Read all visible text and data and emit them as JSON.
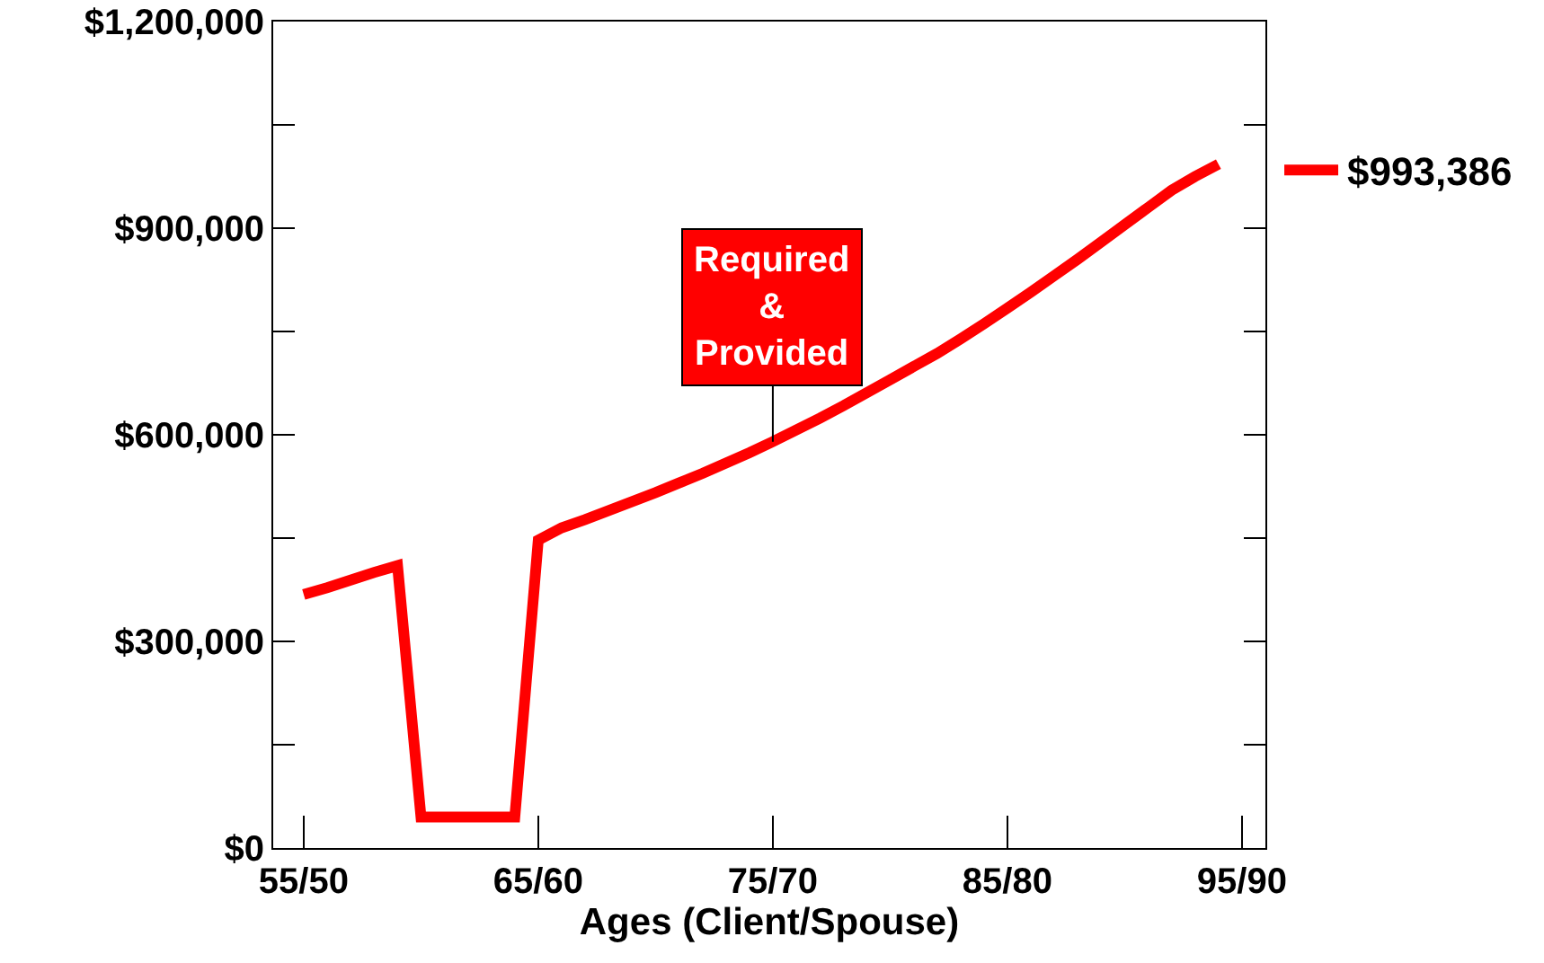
{
  "chart_data": {
    "type": "line",
    "xlabel": "Ages (Client/Spouse)",
    "categories": [
      "55/50",
      null,
      null,
      null,
      null,
      null,
      null,
      null,
      null,
      null,
      "65/60",
      null,
      null,
      null,
      null,
      null,
      null,
      null,
      null,
      null,
      "75/70",
      null,
      null,
      null,
      null,
      null,
      null,
      null,
      null,
      null,
      "85/80",
      null,
      null,
      null,
      null,
      null,
      null,
      null,
      null,
      null,
      "95/90"
    ],
    "ylim": [
      0,
      1200000
    ],
    "yticks": [
      {
        "value": 0,
        "label": "$0"
      },
      {
        "value": 150000,
        "label": null
      },
      {
        "value": 300000,
        "label": "$300,000"
      },
      {
        "value": 450000,
        "label": null
      },
      {
        "value": 600000,
        "label": "$600,000"
      },
      {
        "value": 750000,
        "label": null
      },
      {
        "value": 900000,
        "label": "$900,000"
      },
      {
        "value": 1050000,
        "label": null
      },
      {
        "value": 1200000,
        "label": "$1,200,000"
      }
    ],
    "series": [
      {
        "name": "$993,386",
        "color": "#ff0000",
        "values": [
          368000,
          378000,
          389000,
          400000,
          410000,
          45000,
          45000,
          45000,
          45000,
          45000,
          447000,
          465000,
          477000,
          490000,
          503000,
          516000,
          530000,
          544000,
          559000,
          574000,
          590000,
          607000,
          624000,
          642000,
          661000,
          680000,
          699000,
          718000,
          739000,
          761000,
          784000,
          807000,
          831000,
          855000,
          880000,
          905000,
          930000,
          955000,
          975000,
          993000,
          null
        ]
      }
    ],
    "annotations": [
      {
        "text": "Required\n&\nProvided",
        "x": "75/70",
        "y": 590000
      }
    ],
    "legend": "right",
    "grid": false,
    "line_style": "solid",
    "marker": "none"
  }
}
